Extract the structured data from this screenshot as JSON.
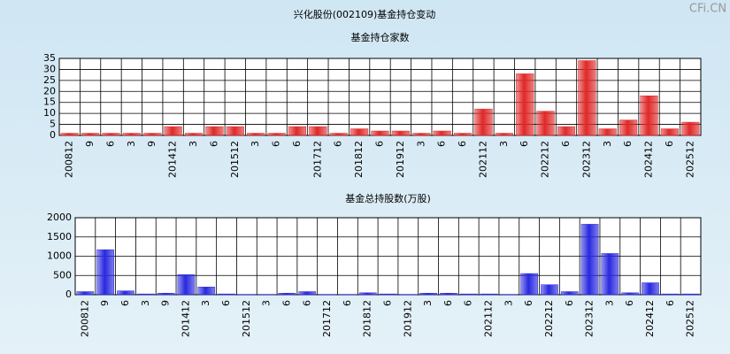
{
  "title": "兴化股份(002109)基金持仓变动",
  "watermark": "CFi.CN",
  "chart_data": [
    {
      "type": "bar",
      "title": "基金持仓家数",
      "categories": [
        "200812",
        "9",
        "6",
        "3",
        "9",
        "201412",
        "3",
        "6",
        "201512",
        "3",
        "6",
        "6",
        "201712",
        "6",
        "201812",
        "6",
        "201912",
        "3",
        "6",
        "6",
        "202112",
        "3",
        "6",
        "202212",
        "6",
        "202312",
        "3",
        "6",
        "202412",
        "6",
        "202512"
      ],
      "values": [
        1,
        1,
        1,
        1,
        1,
        4,
        1,
        4,
        4,
        1,
        1,
        4,
        4,
        1,
        3,
        2,
        2,
        1,
        2,
        1,
        12,
        1,
        28,
        11,
        4,
        34,
        3,
        7,
        18,
        3,
        6
      ],
      "color": "#e02828",
      "ylim": [
        0,
        35
      ],
      "yticks": [
        0,
        5,
        10,
        15,
        20,
        25,
        30,
        35
      ],
      "grid": true
    },
    {
      "type": "bar",
      "title": "基金总持股数(万股)",
      "categories": [
        "200812",
        "9",
        "6",
        "3",
        "9",
        "201412",
        "3",
        "6",
        "201512",
        "3",
        "6",
        "6",
        "201712",
        "6",
        "201812",
        "6",
        "201912",
        "3",
        "6",
        "6",
        "202112",
        "3",
        "6",
        "202212",
        "6",
        "202312",
        "3",
        "6",
        "202412",
        "6",
        "202512"
      ],
      "values": [
        80,
        1170,
        100,
        20,
        40,
        520,
        200,
        20,
        10,
        10,
        40,
        80,
        10,
        10,
        50,
        20,
        10,
        40,
        40,
        20,
        20,
        10,
        550,
        260,
        80,
        1830,
        1070,
        50,
        310,
        20,
        20
      ],
      "color": "#2828e0",
      "ylim": [
        0,
        2000
      ],
      "yticks": [
        0,
        500,
        1000,
        1500,
        2000
      ],
      "grid": true
    }
  ]
}
